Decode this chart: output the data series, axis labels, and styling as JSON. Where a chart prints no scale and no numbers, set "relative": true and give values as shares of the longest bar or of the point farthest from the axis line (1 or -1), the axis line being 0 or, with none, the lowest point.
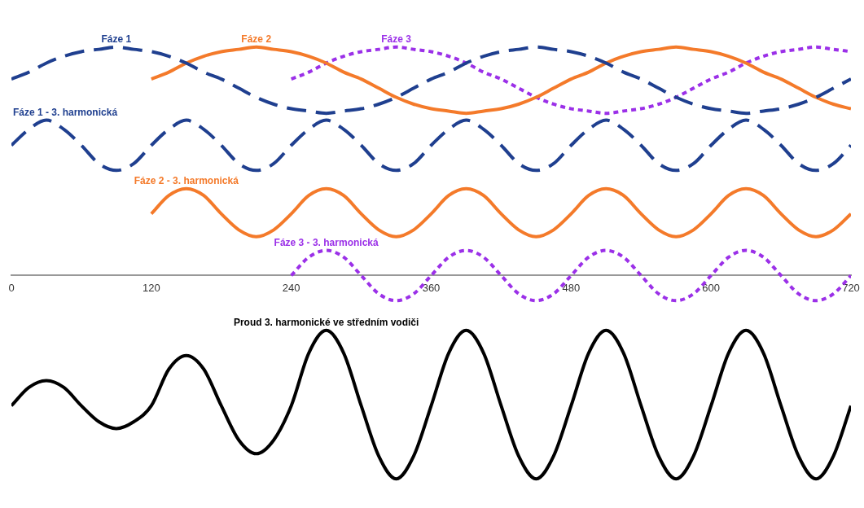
{
  "chart_data": {
    "type": "line",
    "relative": true,
    "legend": false,
    "grid": false,
    "marker": "none",
    "xlim": [
      0,
      720
    ],
    "xticks": [
      0,
      120,
      240,
      360,
      480,
      600,
      720
    ],
    "x": [
      0,
      15,
      30,
      45,
      60,
      75,
      90,
      105,
      120,
      135,
      150,
      165,
      180,
      195,
      210,
      225,
      240,
      255,
      270,
      285,
      300,
      315,
      330,
      345,
      360,
      375,
      390,
      405,
      420,
      435,
      450,
      465,
      480,
      495,
      510,
      525,
      540,
      555,
      570,
      585,
      600,
      615,
      630,
      645,
      660,
      675,
      690,
      705,
      720
    ],
    "series": [
      {
        "name": "Fáze 1",
        "color": "#1f3f8f",
        "line_style": "dashed",
        "values": [
          0.86,
          0.89,
          0.93,
          0.96,
          0.98,
          0.99,
          1,
          0.99,
          0.98,
          0.96,
          0.93,
          0.89,
          0.86,
          0.82,
          0.78,
          0.75,
          0.73,
          0.72,
          0.71,
          0.72,
          0.73,
          0.75,
          0.78,
          0.82,
          0.86,
          0.89,
          0.93,
          0.96,
          0.98,
          0.99,
          1,
          0.99,
          0.98,
          0.96,
          0.93,
          0.89,
          0.86,
          0.82,
          0.78,
          0.75,
          0.73,
          0.72,
          0.71,
          0.72,
          0.73,
          0.75,
          0.78,
          0.82,
          0.86
        ]
      },
      {
        "name": "Fáze 2",
        "color": "#f47a2a",
        "line_style": "solid",
        "values": [
          null,
          null,
          null,
          null,
          null,
          null,
          null,
          null,
          0.86,
          0.89,
          0.93,
          0.96,
          0.98,
          0.99,
          1,
          0.99,
          0.98,
          0.96,
          0.93,
          0.89,
          0.86,
          0.82,
          0.78,
          0.75,
          0.73,
          0.72,
          0.71,
          0.72,
          0.73,
          0.75,
          0.78,
          0.82,
          0.86,
          0.89,
          0.93,
          0.96,
          0.98,
          0.99,
          1,
          0.99,
          0.98,
          0.96,
          0.93,
          0.89,
          0.86,
          0.82,
          0.78,
          0.75,
          0.73
        ]
      },
      {
        "name": "Fáze 3",
        "color": "#9b30e8",
        "line_style": "dotted",
        "values": [
          null,
          null,
          null,
          null,
          null,
          null,
          null,
          null,
          null,
          null,
          null,
          null,
          null,
          null,
          null,
          null,
          0.86,
          0.89,
          0.93,
          0.96,
          0.98,
          0.99,
          1,
          0.99,
          0.98,
          0.96,
          0.93,
          0.89,
          0.86,
          0.82,
          0.78,
          0.75,
          0.73,
          0.72,
          0.71,
          0.72,
          0.73,
          0.75,
          0.78,
          0.82,
          0.86,
          0.89,
          0.93,
          0.96,
          0.98,
          0.99,
          1,
          0.99,
          0.98
        ]
      },
      {
        "name": "Fáze 1 - 3. harmonická",
        "color": "#1f3f8f",
        "line_style": "dashed",
        "values": [
          0.57,
          0.64,
          0.68,
          0.64,
          0.57,
          0.49,
          0.46,
          0.49,
          0.57,
          0.64,
          0.68,
          0.64,
          0.57,
          0.49,
          0.46,
          0.49,
          0.57,
          0.64,
          0.68,
          0.64,
          0.57,
          0.49,
          0.46,
          0.49,
          0.57,
          0.64,
          0.68,
          0.64,
          0.57,
          0.49,
          0.46,
          0.49,
          0.57,
          0.64,
          0.68,
          0.64,
          0.57,
          0.49,
          0.46,
          0.49,
          0.57,
          0.64,
          0.68,
          0.64,
          0.57,
          0.49,
          0.46,
          0.49,
          0.57
        ]
      },
      {
        "name": "Fáze 2 - 3. harmonická",
        "color": "#f47a2a",
        "line_style": "solid",
        "values": [
          null,
          null,
          null,
          null,
          null,
          null,
          null,
          null,
          0.27,
          0.35,
          0.38,
          0.35,
          0.27,
          0.2,
          0.17,
          0.2,
          0.27,
          0.35,
          0.38,
          0.35,
          0.27,
          0.2,
          0.17,
          0.2,
          0.27,
          0.35,
          0.38,
          0.35,
          0.27,
          0.2,
          0.17,
          0.2,
          0.27,
          0.35,
          0.38,
          0.35,
          0.27,
          0.2,
          0.17,
          0.2,
          0.27,
          0.35,
          0.38,
          0.35,
          0.27,
          0.2,
          0.17,
          0.2,
          0.27
        ]
      },
      {
        "name": "Fáze 3 - 3. harmonická",
        "color": "#9b30e8",
        "line_style": "dotted",
        "values": [
          null,
          null,
          null,
          null,
          null,
          null,
          null,
          null,
          null,
          null,
          null,
          null,
          null,
          null,
          null,
          null,
          0,
          0.08,
          0.11,
          0.08,
          0,
          -0.08,
          -0.11,
          -0.08,
          0,
          0.08,
          0.11,
          0.08,
          0,
          -0.08,
          -0.11,
          -0.08,
          0,
          0.08,
          0.11,
          0.08,
          0,
          -0.08,
          -0.11,
          -0.08,
          0,
          0.08,
          0.11,
          0.08,
          0,
          -0.08,
          -0.11,
          -0.08,
          0
        ]
      },
      {
        "name": "Proud 3. harmonické ve středním vodiči",
        "color": "#000000",
        "line_style": "solid",
        "values": [
          -0.57,
          -0.49,
          -0.46,
          -0.49,
          -0.57,
          -0.64,
          -0.67,
          -0.64,
          -0.57,
          -0.41,
          -0.35,
          -0.41,
          -0.57,
          -0.72,
          -0.78,
          -0.72,
          -0.57,
          -0.34,
          -0.24,
          -0.34,
          -0.57,
          -0.79,
          -0.89,
          -0.79,
          -0.57,
          -0.34,
          -0.24,
          -0.34,
          -0.57,
          -0.79,
          -0.89,
          -0.79,
          -0.57,
          -0.34,
          -0.24,
          -0.34,
          -0.57,
          -0.79,
          -0.89,
          -0.79,
          -0.57,
          -0.34,
          -0.24,
          -0.34,
          -0.57,
          -0.79,
          -0.89,
          -0.79,
          -0.57
        ]
      }
    ]
  }
}
